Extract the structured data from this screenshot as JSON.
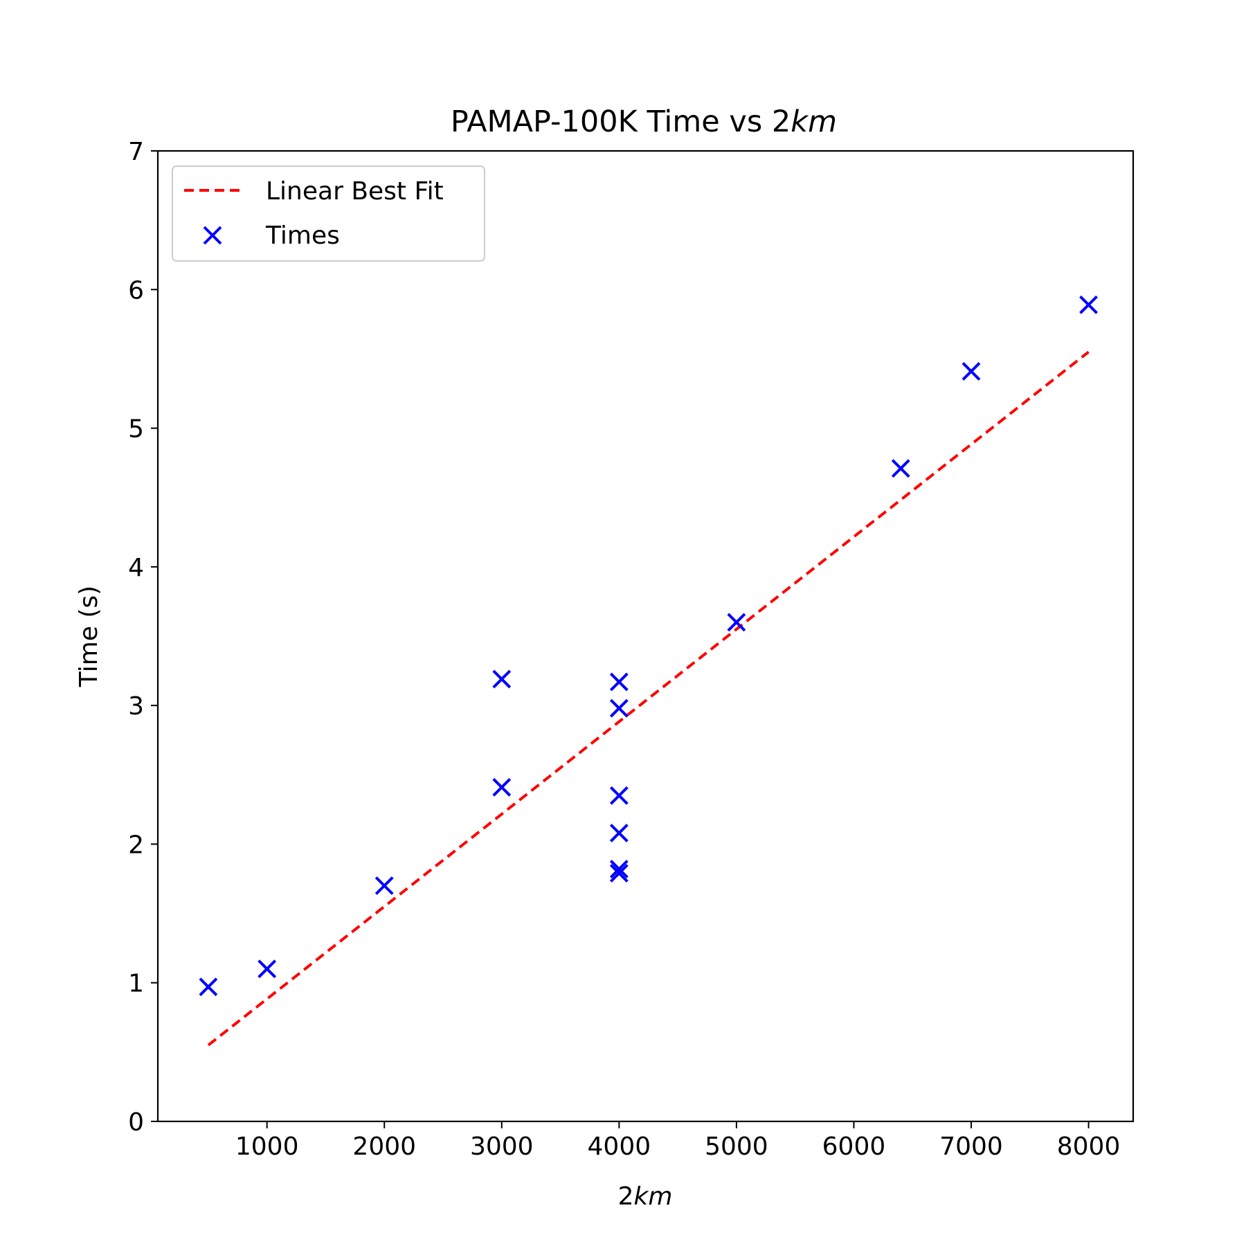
{
  "chart_data": {
    "type": "scatter",
    "title_prefix": "PAMAP-100K Time vs 2",
    "title_italic": "km",
    "xlabel_prefix": "2",
    "xlabel_italic": "km",
    "ylabel": "Time (s)",
    "xlim": [
      70,
      8380
    ],
    "ylim": [
      0,
      7
    ],
    "xticks": [
      1000,
      2000,
      3000,
      4000,
      5000,
      6000,
      7000,
      8000
    ],
    "yticks": [
      0,
      1,
      2,
      3,
      4,
      5,
      6,
      7
    ],
    "grid": false,
    "legend_position": "upper-left",
    "series": [
      {
        "name": "Linear Best Fit",
        "kind": "line",
        "style": "dashed",
        "color": "#ff0000",
        "x": [
          500,
          8000
        ],
        "y": [
          0.55,
          5.55
        ]
      },
      {
        "name": "Times",
        "kind": "scatter",
        "marker": "x",
        "color": "#0000ff",
        "x": [
          500,
          1000,
          2000,
          3000,
          3000,
          4000,
          4000,
          4000,
          4000,
          4000,
          4000,
          5000,
          6400,
          7000,
          8000
        ],
        "y": [
          0.97,
          1.1,
          1.7,
          2.41,
          3.19,
          3.17,
          2.98,
          2.35,
          2.08,
          1.82,
          1.79,
          3.6,
          4.71,
          5.41,
          5.89
        ]
      }
    ]
  }
}
